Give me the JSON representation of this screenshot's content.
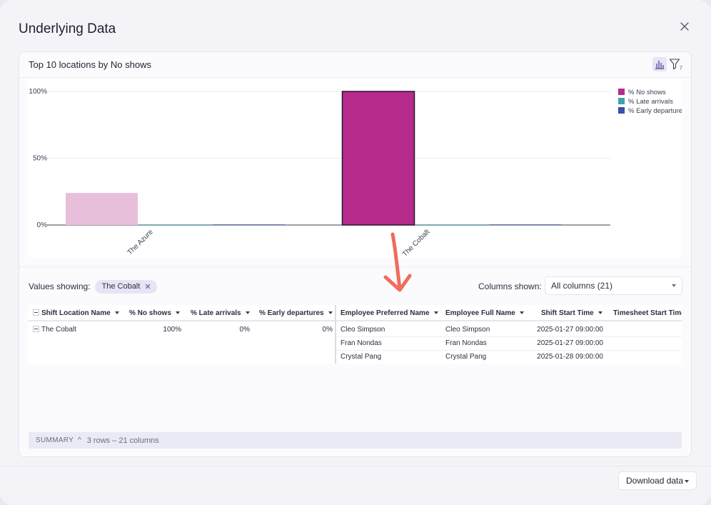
{
  "modal": {
    "title": "Underlying Data",
    "close_icon": "close-icon"
  },
  "card": {
    "title": "Top 10 locations by No shows",
    "chart_icon": "bar-chart-icon",
    "filter_icon": "filter-icon",
    "filter_count": "7"
  },
  "chart_data": {
    "type": "bar",
    "categories": [
      "The Azure",
      "The Cobalt"
    ],
    "series": [
      {
        "name": "% No shows",
        "values": [
          24,
          100
        ],
        "color": "#b62b8b",
        "faded_color": "#e8bfdb"
      },
      {
        "name": "% Late arrivals",
        "values": [
          0,
          0
        ],
        "color": "#3aa6a6"
      },
      {
        "name": "% Early departures",
        "values": [
          0,
          0
        ],
        "color": "#3b4ea6"
      }
    ],
    "selected_category": "The Cobalt",
    "ylim": [
      0,
      100
    ],
    "y_ticks": [
      "0%",
      "50%",
      "100%"
    ],
    "y_tick_values": [
      0,
      50,
      100
    ],
    "legend_position": "top-right",
    "grid": true
  },
  "filters": {
    "values_label": "Values showing:",
    "chip_label": "The Cobalt",
    "chip_remove": "✕",
    "columns_label": "Columns shown:",
    "columns_value": "All columns (21)"
  },
  "table": {
    "left_headers": [
      "Shift Location Name",
      "% No shows",
      "% Late arrivals",
      "% Early departures"
    ],
    "left_rows": [
      {
        "location": "The Cobalt",
        "no_shows": "100%",
        "late": "0%",
        "early": "0%"
      }
    ],
    "right_headers": [
      "Employee Preferred Name",
      "Employee Full Name",
      "Shift Start Time",
      "Timesheet Start Time"
    ],
    "right_rows": [
      {
        "preferred": "Cleo Simpson",
        "full": "Cleo Simpson",
        "shift_start": "2025-01-27 09:00:00"
      },
      {
        "preferred": "Fran Nondas",
        "full": "Fran Nondas",
        "shift_start": "2025-01-27 09:00:00"
      },
      {
        "preferred": "Crystal Pang",
        "full": "Crystal Pang",
        "shift_start": "2025-01-28 09:00:00"
      }
    ]
  },
  "summary": {
    "label": "SUMMARY",
    "chevron": "^",
    "text": "3 rows – 21 columns"
  },
  "footer": {
    "download_label": "Download data"
  },
  "annotation": {
    "arrow_color": "#f26b5b",
    "arrow_icon": "curved-down-arrow-icon"
  }
}
